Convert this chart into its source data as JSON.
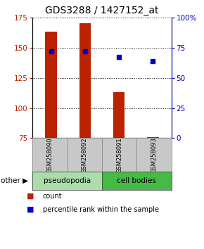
{
  "title": "GDS3288 / 1427152_at",
  "samples": [
    "GSM258090",
    "GSM258092",
    "GSM258091",
    "GSM258093"
  ],
  "counts": [
    163,
    170,
    113,
    76
  ],
  "percentiles": [
    72,
    72,
    67,
    64
  ],
  "ylim_left": [
    75,
    175
  ],
  "ylim_right": [
    0,
    100
  ],
  "yticks_left": [
    75,
    100,
    125,
    150,
    175
  ],
  "yticks_right": [
    0,
    25,
    50,
    75,
    100
  ],
  "ytick_right_labels": [
    "0",
    "25",
    "50",
    "75",
    "100%"
  ],
  "bar_color": "#bb2200",
  "dot_color": "#0000cc",
  "groups": [
    {
      "label": "pseudopodia",
      "color": "#aaddaa",
      "indices": [
        0,
        1
      ]
    },
    {
      "label": "cell bodies",
      "color": "#44bb44",
      "indices": [
        2,
        3
      ]
    }
  ],
  "other_label": "other",
  "legend_count_label": "count",
  "legend_percentile_label": "percentile rank within the sample",
  "bar_width": 0.35,
  "x_positions": [
    0,
    1,
    2,
    3
  ],
  "background_color": "#ffffff",
  "plot_bg_color": "#ffffff",
  "sample_box_color": "#c8c8c8",
  "title_fontsize": 10,
  "tick_fontsize": 7.5,
  "label_fontsize": 7.5
}
